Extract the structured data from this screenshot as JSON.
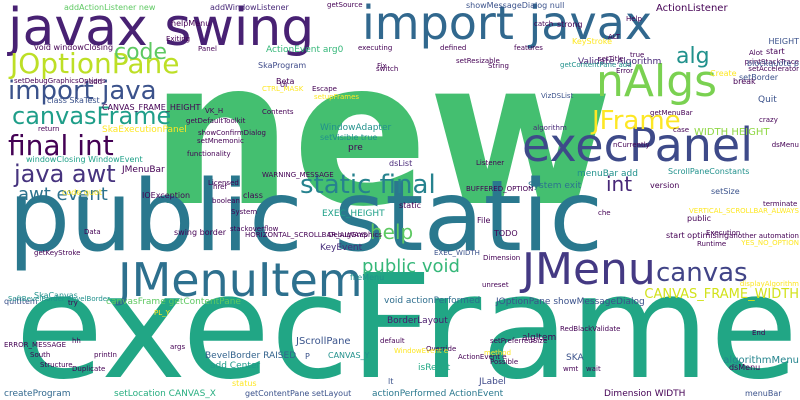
{
  "background": "#ffffff",
  "palette": [
    "#440154",
    "#3b528b",
    "#21918c",
    "#5ec962",
    "#fde725"
  ],
  "words": [
    {
      "text": "new",
      "color": "#44bf70"
    },
    {
      "text": "execFrame",
      "color": "#21a685"
    },
    {
      "text": "public static",
      "color": "#2a788e"
    },
    {
      "text": "import javax",
      "color": "#31688e"
    },
    {
      "text": "javax swing",
      "color": "#482173"
    },
    {
      "text": "execPanel",
      "color": "#3e4a89"
    },
    {
      "text": "JMenuItem",
      "color": "#2d708e"
    },
    {
      "text": "nAlgs",
      "color": "#7ad151"
    },
    {
      "text": "static final",
      "color": "#26828e"
    },
    {
      "text": "JMenu",
      "color": "#443983"
    },
    {
      "text": "JOptionPane",
      "color": "#bddf26"
    },
    {
      "text": "import java",
      "color": "#3b528b"
    },
    {
      "text": "canvasFrame",
      "color": "#1f9e89"
    },
    {
      "text": "final int",
      "color": "#440154"
    },
    {
      "text": "java awt",
      "color": "#46337e"
    },
    {
      "text": "code",
      "color": "#5ec962"
    },
    {
      "text": "alg",
      "color": "#21918c"
    },
    {
      "text": "JFrame",
      "color": "#fde725"
    },
    {
      "text": "canvas",
      "color": "#414487"
    },
    {
      "text": "help",
      "color": "#5ec962"
    },
    {
      "text": "public void",
      "color": "#35b779"
    },
    {
      "text": "awt event",
      "color": "#2c728e"
    },
    {
      "text": "int",
      "color": "#482878"
    },
    {
      "text": "CANVAS_FRAME_WIDTH",
      "color": "#d2e21b"
    },
    {
      "text": "algorithmMenu",
      "color": "#25858e"
    },
    {
      "text": "EXEC_HEIGHT",
      "color": "#1fa088"
    },
    {
      "text": "WIDTH HEIGHT",
      "color": "#8fd744"
    },
    {
      "text": "KeyEvent",
      "color": "#472d7b"
    },
    {
      "text": "JScrollPane",
      "color": "#3a548c"
    },
    {
      "text": "isReset",
      "color": "#22a884"
    },
    {
      "text": "BevelBorder RAISED",
      "color": "#33638d"
    },
    {
      "text": "add Center",
      "color": "#1e9b8a"
    },
    {
      "text": "actionPerformed ActionEvent",
      "color": "#2a788e"
    },
    {
      "text": "Dimension WIDTH",
      "color": "#440154"
    },
    {
      "text": "JLabel",
      "color": "#3e4989"
    },
    {
      "text": "createProgram",
      "color": "#31688e"
    },
    {
      "text": "setLocation CANVAS_X",
      "color": "#28ae80"
    },
    {
      "text": "getContentPane setLayout",
      "color": "#3b528b"
    },
    {
      "text": "canvasFrame getContentPane",
      "color": "#5ec962"
    },
    {
      "text": "BorderLayout",
      "color": "#481a6c"
    },
    {
      "text": "void actionPerformed",
      "color": "#2e6e8e"
    },
    {
      "text": "JOptionPane showMessageDialog",
      "color": "#3b528b"
    },
    {
      "text": "System exit",
      "color": "#2c728e"
    },
    {
      "text": "menuBar add",
      "color": "#21918c"
    },
    {
      "text": "ActionListener",
      "color": "#440154"
    },
    {
      "text": "showMessageDialog null",
      "color": "#3b528b"
    },
    {
      "text": "addActionListener new",
      "color": "#5ec962"
    },
    {
      "text": "addWindowListener",
      "color": "#482878"
    },
    {
      "text": "windowClosing WindowEvent",
      "color": "#1fa088"
    },
    {
      "text": "void windowClosing",
      "color": "#440154"
    },
    {
      "text": "CANVAS_FRAME_HEIGHT",
      "color": "#440154"
    },
    {
      "text": "SkaExecutionPanel",
      "color": "#fde725"
    },
    {
      "text": "Validate Algorithm",
      "color": "#482878"
    },
    {
      "text": "ActionEvent arg0",
      "color": "#35b779"
    },
    {
      "text": "WindowAdapter",
      "color": "#21918c"
    },
    {
      "text": "helpMenu",
      "color": "#440154"
    },
    {
      "text": "SkaProgram",
      "color": "#3e4a89"
    },
    {
      "text": "JMenuBar",
      "color": "#440154"
    },
    {
      "text": "algorithm",
      "color": "#482878"
    },
    {
      "text": "setVisible true",
      "color": "#21918c"
    },
    {
      "text": "pre",
      "color": "#440154"
    },
    {
      "text": "static",
      "color": "#440154"
    },
    {
      "text": "KeyStroke",
      "color": "#fde725"
    },
    {
      "text": "dsList",
      "color": "#482878"
    },
    {
      "text": "version",
      "color": "#440154"
    },
    {
      "text": "Quit",
      "color": "#3b528b"
    },
    {
      "text": "setBorder",
      "color": "#3b528b"
    },
    {
      "text": "start",
      "color": "#440154"
    },
    {
      "text": "strong",
      "color": "#440154"
    },
    {
      "text": "ScrollPaneConstants",
      "color": "#21918c"
    },
    {
      "text": "setSize",
      "color": "#3b528b"
    },
    {
      "text": "IOException",
      "color": "#440154"
    },
    {
      "text": "class",
      "color": "#440154"
    },
    {
      "text": "SkaCanvas",
      "color": "#21918c"
    },
    {
      "text": "quitItem",
      "color": "#3b528b"
    },
    {
      "text": "algItem",
      "color": "#440154"
    },
    {
      "text": "SKA",
      "color": "#3b528b"
    },
    {
      "text": "CANVAS_Y",
      "color": "#21918c"
    },
    {
      "text": "status",
      "color": "#fde725"
    },
    {
      "text": "menuBar",
      "color": "#3b528b"
    },
    {
      "text": "dsMenu",
      "color": "#440154"
    },
    {
      "text": "break",
      "color": "#440154"
    },
    {
      "text": "HEIGHT",
      "color": "#3b528b"
    },
    {
      "text": "Beta",
      "color": "#440154"
    },
    {
      "text": "setupFrames",
      "color": "#fde725"
    },
    {
      "text": "Create",
      "color": "#fde725"
    },
    {
      "text": "class SkaTest",
      "color": "#3b528b"
    },
    {
      "text": "return",
      "color": "#440154"
    },
    {
      "text": "add",
      "color": "#440154"
    },
    {
      "text": "File",
      "color": "#440154"
    },
    {
      "text": "TODO",
      "color": "#440154"
    },
    {
      "text": "EXEC_WIDTH",
      "color": "#3b528b"
    },
    {
      "text": "public",
      "color": "#440154"
    },
    {
      "text": "start optimising",
      "color": "#440154"
    },
    {
      "text": "swing border",
      "color": "#440154"
    },
    {
      "text": "lt",
      "color": "#3b528b"
    },
    {
      "text": "P",
      "color": "#3b528b"
    },
    {
      "text": "code quot",
      "color": "#fde725"
    },
    {
      "text": "System",
      "color": "#440154"
    },
    {
      "text": "href",
      "color": "#440154"
    },
    {
      "text": "End",
      "color": "#440154"
    },
    {
      "text": "wmt",
      "color": "#440154"
    },
    {
      "text": "fileMenu",
      "color": "#21918c"
    },
    {
      "text": "String",
      "color": "#440154"
    },
    {
      "text": "Fix",
      "color": "#440154"
    },
    {
      "text": "features",
      "color": "#440154"
    },
    {
      "text": "catch",
      "color": "#440154"
    },
    {
      "text": "printStackTrace",
      "color": "#440154"
    },
    {
      "text": "Alot",
      "color": "#440154"
    },
    {
      "text": "blockquote p",
      "color": "#3b528b"
    },
    {
      "text": "VizDSList",
      "color": "#3b528b"
    },
    {
      "text": "getContentPane add",
      "color": "#21918c"
    },
    {
      "text": "case",
      "color": "#440154"
    },
    {
      "text": "executing",
      "color": "#440154"
    },
    {
      "text": "functionality",
      "color": "#440154"
    },
    {
      "text": "Contents",
      "color": "#440154"
    },
    {
      "text": "SoftBevelBorder BevelBorder",
      "color": "#21918c"
    },
    {
      "text": "another automation",
      "color": "#440154"
    },
    {
      "text": "Execution",
      "color": "#440154"
    },
    {
      "text": "Runtime",
      "color": "#440154"
    },
    {
      "text": "terminate",
      "color": "#440154"
    },
    {
      "text": "Override",
      "color": "#440154"
    },
    {
      "text": "Duplicate",
      "color": "#440154"
    },
    {
      "text": "South",
      "color": "#440154"
    },
    {
      "text": "Structure",
      "color": "#440154"
    },
    {
      "text": "getKeyStroke",
      "color": "#440154"
    },
    {
      "text": "getMenuBar",
      "color": "#440154"
    },
    {
      "text": "setMnemonic",
      "color": "#440154"
    },
    {
      "text": "setAccelerator",
      "color": "#440154"
    },
    {
      "text": "crazy",
      "color": "#440154"
    },
    {
      "text": "unreset",
      "color": "#440154"
    },
    {
      "text": "method",
      "color": "#fde725"
    },
    {
      "text": "Possible",
      "color": "#440154"
    },
    {
      "text": "wait",
      "color": "#440154"
    },
    {
      "text": "defined",
      "color": "#440154"
    },
    {
      "text": "Exiting",
      "color": "#440154"
    },
    {
      "text": "stackoverflow",
      "color": "#440154"
    },
    {
      "text": "Data",
      "color": "#440154"
    },
    {
      "text": "try",
      "color": "#440154"
    },
    {
      "text": "printIn",
      "color": "#440154"
    },
    {
      "text": "default",
      "color": "#440154"
    },
    {
      "text": "hh",
      "color": "#440154"
    },
    {
      "text": "Error",
      "color": "#440154"
    },
    {
      "text": "setTitle",
      "color": "#440154"
    },
    {
      "text": "true",
      "color": "#440154"
    },
    {
      "text": "getSource",
      "color": "#440154"
    },
    {
      "text": "boolean",
      "color": "#440154"
    },
    {
      "text": "dsMenu",
      "color": "#440154"
    },
    {
      "text": "VK_H",
      "color": "#440154"
    },
    {
      "text": "setDebugGraphicsOptions",
      "color": "#440154"
    },
    {
      "text": "HORIZONTAL_SCROLLBAR_ALWAYS",
      "color": "#440154"
    },
    {
      "text": "VERTICAL_SCROLLBAR_ALWAYS",
      "color": "#fde725"
    },
    {
      "text": "WARNING_MESSAGE",
      "color": "#440154"
    },
    {
      "text": "ERROR_MESSAGE",
      "color": "#440154"
    },
    {
      "text": "BUFFERED_OPTION",
      "color": "#440154"
    },
    {
      "text": "DebugGraphics",
      "color": "#440154"
    },
    {
      "text": "showConfirmDialog",
      "color": "#440154"
    },
    {
      "text": "YES_NO_OPTION",
      "color": "#fde725"
    },
    {
      "text": "displayAlgorithm",
      "color": "#fde725"
    },
    {
      "text": "nCurrently",
      "color": "#440154"
    },
    {
      "text": "RedBlackValidate",
      "color": "#440154"
    },
    {
      "text": "setPreferredSize",
      "color": "#440154"
    },
    {
      "text": "WindowEvent e",
      "color": "#fde725"
    },
    {
      "text": "getDefaultToolkit",
      "color": "#440154"
    },
    {
      "text": "Dimension",
      "color": "#440154"
    },
    {
      "text": "setResizable",
      "color": "#440154"
    },
    {
      "text": "UI",
      "color": "#440154"
    },
    {
      "text": "CTRL_MASK",
      "color": "#fde725"
    },
    {
      "text": "Licensed",
      "color": "#440154"
    },
    {
      "text": "Escape",
      "color": "#440154"
    },
    {
      "text": "switch",
      "color": "#440154"
    },
    {
      "text": "Listener",
      "color": "#440154"
    },
    {
      "text": "Panel",
      "color": "#440154"
    },
    {
      "text": "ActionEvent e",
      "color": "#440154"
    },
    {
      "text": "PL_Y",
      "color": "#fde725"
    },
    {
      "text": "che",
      "color": "#440154"
    },
    {
      "text": "Help",
      "color": "#440154"
    },
    {
      "text": "ALT",
      "color": "#440154"
    },
    {
      "text": "args",
      "color": "#440154"
    },
    {
      "text": "main",
      "color": "#440154"
    }
  ]
}
